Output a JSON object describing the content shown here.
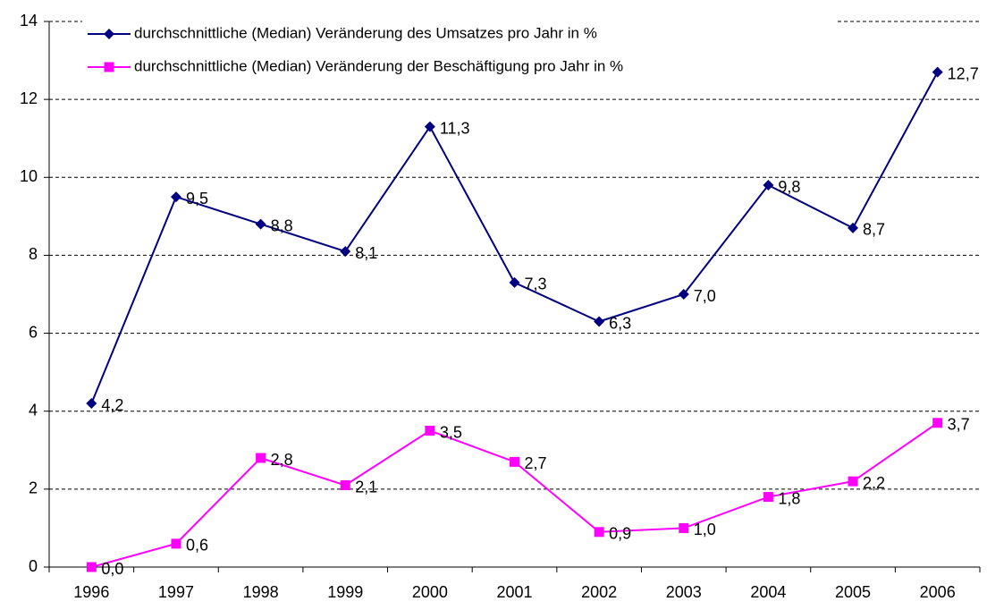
{
  "chart_data": {
    "type": "line",
    "categories": [
      "1996",
      "1997",
      "1998",
      "1999",
      "2000",
      "2001",
      "2002",
      "2003",
      "2004",
      "2005",
      "2006"
    ],
    "series": [
      {
        "name": "durchschnittliche (Median) Veränderung des Umsatzes pro Jahr in %",
        "color": "#000080",
        "marker": "diamond",
        "values": [
          4.2,
          9.5,
          8.8,
          8.1,
          11.3,
          7.3,
          6.3,
          7.0,
          9.8,
          8.7,
          12.7
        ],
        "value_labels": [
          "4,2",
          "9,5",
          "8,8",
          "8,1",
          "11,3",
          "7,3",
          "6,3",
          "7,0",
          "9,8",
          "8,7",
          "12,7"
        ]
      },
      {
        "name": "durchschnittliche  (Median) Veränderung der Beschäftigung pro Jahr in %",
        "color": "#ff00ff",
        "marker": "square",
        "values": [
          0.0,
          0.6,
          2.8,
          2.1,
          3.5,
          2.7,
          0.9,
          1.0,
          1.8,
          2.2,
          3.7
        ],
        "value_labels": [
          "0,0",
          "0,6",
          "2,8",
          "2,1",
          "3,5",
          "2,7",
          "0,9",
          "1,0",
          "1,8",
          "2,2",
          "3,7"
        ]
      }
    ],
    "ylim": [
      0,
      14
    ],
    "yticks": [
      0,
      2,
      4,
      6,
      8,
      10,
      12,
      14
    ],
    "grid": true,
    "legend": "top-left"
  }
}
